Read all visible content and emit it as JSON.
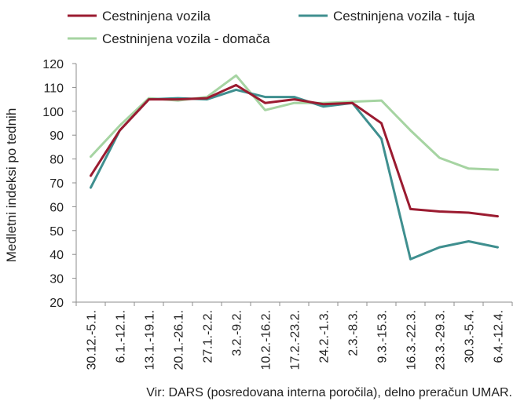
{
  "chart_data": {
    "type": "line",
    "title": "",
    "ylabel": "Medletni indeksi po tednih",
    "xlabel": "",
    "ylim": [
      20,
      120
    ],
    "yticks": [
      20,
      30,
      40,
      50,
      60,
      70,
      80,
      90,
      100,
      110,
      120
    ],
    "grid": false,
    "legend_position": "top",
    "categories": [
      "30.12.-5.1.",
      "6.1.-12.1.",
      "13.1.-19.1.",
      "20.1.-26.1.",
      "27.1.-2.2.",
      "3.2.-9.2.",
      "10.2.-16.2.",
      "17.2.-23.2.",
      "24.2.-1.3.",
      "2.3.-8.3.",
      "9.3.-15.3.",
      "16.3.-22.3.",
      "23.3.-29.3.",
      "30.3.-5.4.",
      "6.4.-12.4."
    ],
    "series": [
      {
        "name": "Cestninjena vozila",
        "color": "#9b1b30",
        "values": [
          73,
          92,
          105,
          105,
          105.5,
          111,
          103.5,
          105,
          103,
          103.5,
          95,
          59,
          58,
          57.5,
          56
        ]
      },
      {
        "name": "Cestninjena vozila - tuja",
        "color": "#3f8f8f",
        "values": [
          68,
          92,
          105,
          105.5,
          105,
          109,
          106,
          106,
          102,
          103.5,
          88.5,
          38,
          43,
          45.5,
          43
        ]
      },
      {
        "name": "Cestninjena vozila - domača",
        "color": "#a6d4a2",
        "values": [
          81,
          94,
          105.5,
          104.5,
          106,
          115,
          100.5,
          103.5,
          103.5,
          104,
          104.5,
          92,
          80.5,
          76,
          75.5
        ]
      }
    ],
    "source": "Vir: DARS (posredovana interna poročila), delno preračun UMAR."
  }
}
